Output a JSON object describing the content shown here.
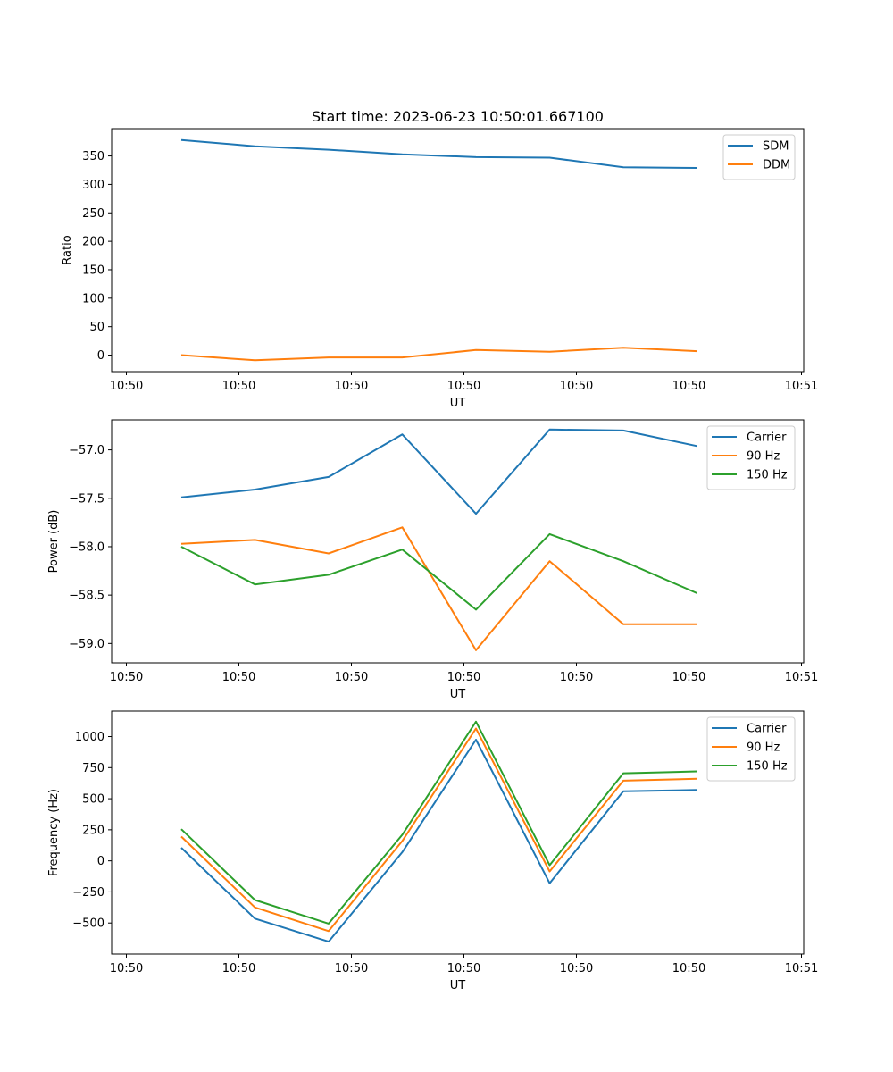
{
  "figure": {
    "title": "Start time: 2023-06-23 10:50:01.667100"
  },
  "chart_data": [
    {
      "type": "line",
      "xlabel": "UT",
      "ylabel": "Ratio",
      "x_tick_labels": [
        "10:50",
        "10:50",
        "10:50",
        "10:50",
        "10:50",
        "10:50",
        "10:51"
      ],
      "y_ticks": [
        0,
        50,
        100,
        150,
        200,
        250,
        300,
        350
      ],
      "ylim": [
        -29,
        398
      ],
      "grid": false,
      "legend_position": "upper right",
      "series": [
        {
          "name": "SDM",
          "color": "#1f77b4",
          "values": [
            378,
            367,
            361,
            353,
            348,
            347,
            330,
            329
          ]
        },
        {
          "name": "DDM",
          "color": "#ff7f0e",
          "values": [
            0,
            -9,
            -4,
            -4,
            9,
            6,
            13,
            7
          ]
        }
      ]
    },
    {
      "type": "line",
      "xlabel": "UT",
      "ylabel": "Power (dB)",
      "x_tick_labels": [
        "10:50",
        "10:50",
        "10:50",
        "10:50",
        "10:50",
        "10:50",
        "10:51"
      ],
      "y_ticks": [
        -57.0,
        -57.5,
        -58.0,
        -58.5,
        -59.0
      ],
      "ylim": [
        -59.2,
        -56.69
      ],
      "grid": false,
      "legend_position": "upper right",
      "series": [
        {
          "name": "Carrier",
          "color": "#1f77b4",
          "values": [
            -57.49,
            -57.41,
            -57.28,
            -56.84,
            -57.66,
            -56.79,
            -56.8,
            -56.96
          ]
        },
        {
          "name": "90 Hz",
          "color": "#ff7f0e",
          "values": [
            -57.97,
            -57.93,
            -58.07,
            -57.8,
            -59.07,
            -58.15,
            -58.8,
            -58.8
          ]
        },
        {
          "name": "150 Hz",
          "color": "#2ca02c",
          "values": [
            -58.0,
            -58.39,
            -58.29,
            -58.03,
            -58.65,
            -57.87,
            -58.15,
            -58.48
          ]
        }
      ]
    },
    {
      "type": "line",
      "xlabel": "UT",
      "ylabel": "Frequency (Hz)",
      "x_tick_labels": [
        "10:50",
        "10:50",
        "10:50",
        "10:50",
        "10:50",
        "10:50",
        "10:51"
      ],
      "y_ticks": [
        -500,
        -250,
        0,
        250,
        500,
        750,
        1000
      ],
      "ylim": [
        -750,
        1205
      ],
      "grid": false,
      "legend_position": "upper right",
      "series": [
        {
          "name": "Carrier",
          "color": "#1f77b4",
          "values": [
            105,
            -465,
            -650,
            70,
            975,
            -180,
            560,
            570
          ]
        },
        {
          "name": "90 Hz",
          "color": "#ff7f0e",
          "values": [
            195,
            -375,
            -565,
            160,
            1065,
            -85,
            645,
            660
          ]
        },
        {
          "name": "150 Hz",
          "color": "#2ca02c",
          "values": [
            255,
            -315,
            -505,
            210,
            1120,
            -35,
            705,
            720
          ]
        }
      ]
    }
  ]
}
